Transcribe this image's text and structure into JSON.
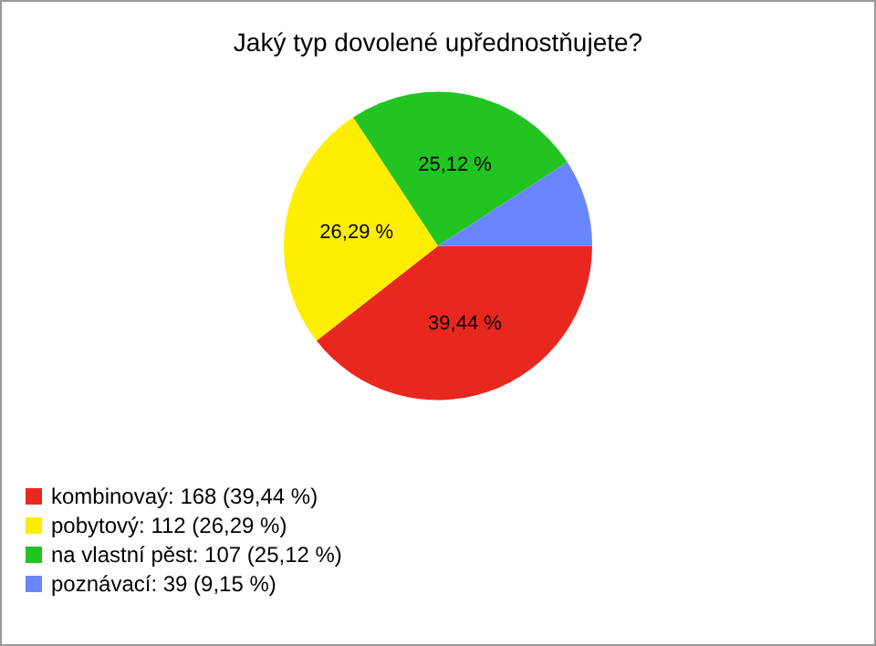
{
  "chart_data": {
    "type": "pie",
    "title": "Jaký typ dovolené upřednostňujete?",
    "categories": [
      "kombinovaý: 168 (39,44 %)",
      "pobytový: 112 (26,29 %)",
      "na vlastní pěst: 107 (25,12 %)",
      "poznávací: 39 (9,15 %)"
    ],
    "values": [
      39.44,
      26.29,
      25.12,
      9.15
    ],
    "colors": [
      "#e8281e",
      "#ffee00",
      "#22c422",
      "#6a86ff"
    ],
    "value_labels": [
      "39,44 %",
      "26,29 %",
      "25,12 %",
      null
    ],
    "legend": "bottom left"
  }
}
